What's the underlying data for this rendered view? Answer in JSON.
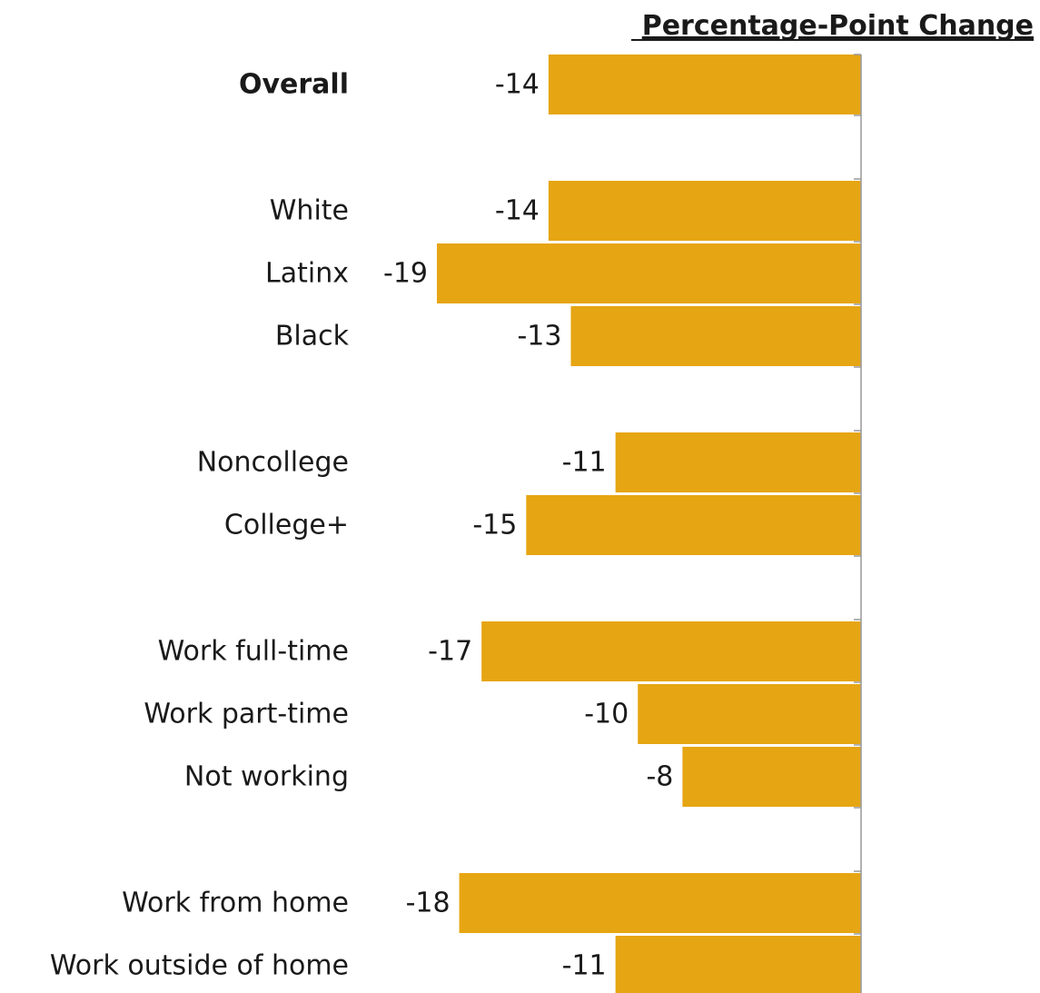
{
  "chart_data": {
    "type": "bar",
    "orientation": "horizontal",
    "header": "Percentage-Point Change",
    "categories": [
      "Overall",
      "White",
      "Latinx",
      "Black",
      "Noncollege",
      "College+",
      "Work full-time",
      "Work part-time",
      "Not working",
      "Work from home",
      "Work outside of home"
    ],
    "values": [
      -14,
      -14,
      -19,
      -13,
      -11,
      -15,
      -17,
      -10,
      -8,
      -18,
      -11
    ],
    "value_labels": [
      "-14",
      "-14",
      "-19",
      "-13",
      "-11",
      "-15",
      "-17",
      "-10",
      "-8",
      "-18",
      "-11"
    ],
    "bold_categories": [
      "Overall"
    ],
    "xlim": [
      -19,
      0
    ],
    "bar_color": "#E6A512",
    "axis_color": "#999999",
    "legend": "none",
    "grid": false
  }
}
